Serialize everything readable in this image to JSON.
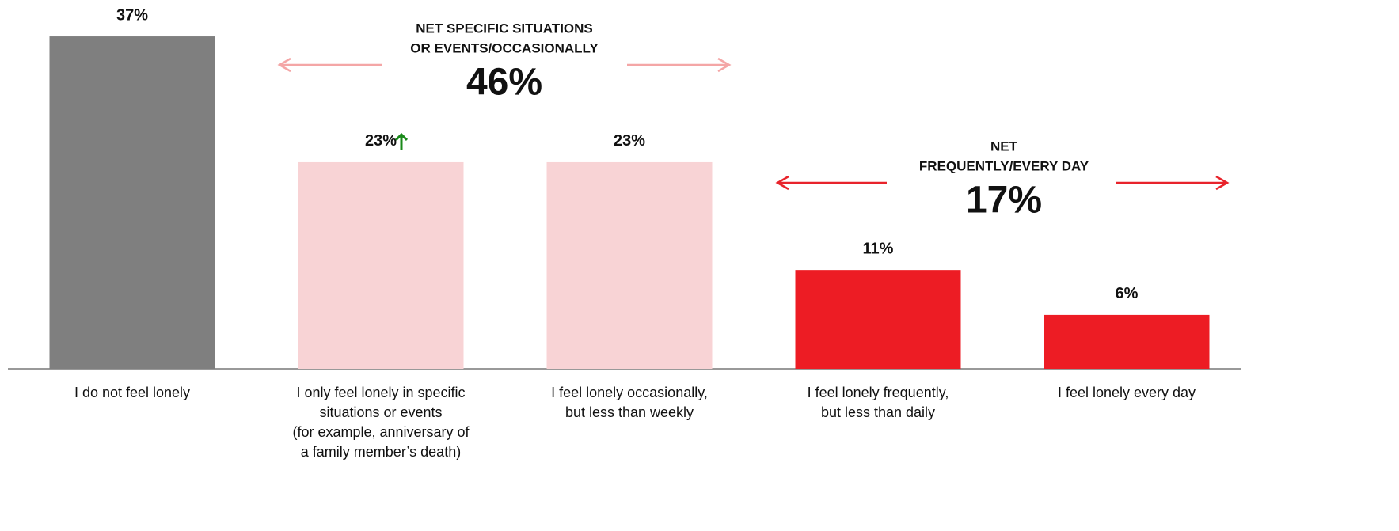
{
  "chart_data": {
    "type": "bar",
    "categories": [
      "I do not feel lonely",
      "I only feel lonely in specific\nsituations or events\n(for example, anniversary of\na family member’s death)",
      "I feel lonely occasionally,\nbut less than weekly",
      "I feel lonely frequently,\nbut less than daily",
      "I feel lonely every day"
    ],
    "values": [
      37,
      23,
      23,
      11,
      6
    ],
    "value_labels": [
      "37%",
      "23%",
      "23%",
      "11%",
      "6%"
    ],
    "colors": [
      "#7f7f7f",
      "#f8d3d5",
      "#f8d3d5",
      "#ed1c24",
      "#ed1c24"
    ],
    "significant_increase": [
      false,
      true,
      false,
      false,
      false
    ],
    "increase_color": "#1a8a1a",
    "annotations": [
      {
        "lines": [
          "NET SPECIFIC SITUATIONS",
          "OR EVENTS/OCCASIONALLY"
        ],
        "value": 46,
        "label": "46%",
        "color": "#f4a6a6"
      },
      {
        "lines": [
          "NET",
          "FREQUENTLY/EVERY DAY"
        ],
        "value": 17,
        "label": "17%",
        "color": "#e8232b"
      }
    ]
  }
}
